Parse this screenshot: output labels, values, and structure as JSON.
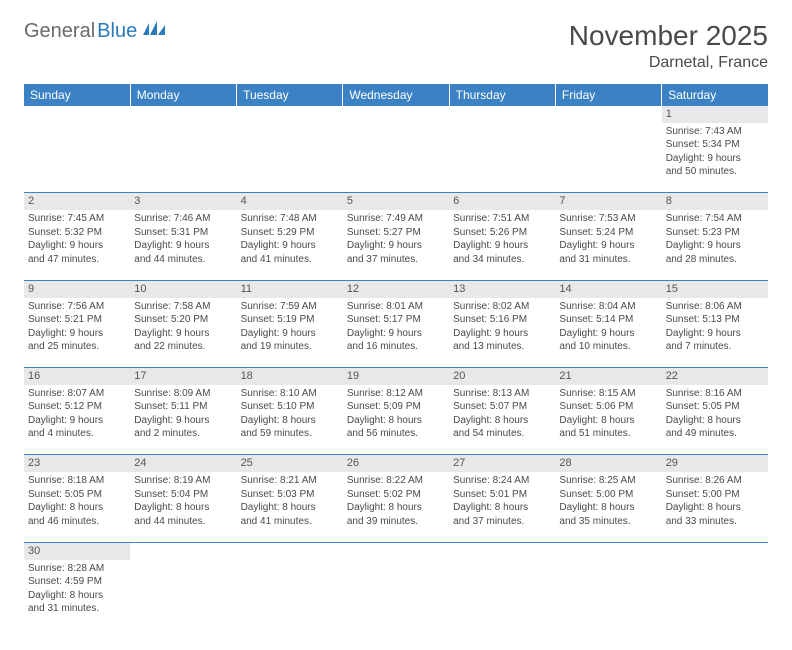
{
  "logo": {
    "textA": "General",
    "textB": "Blue"
  },
  "title": "November 2025",
  "location": "Darnetal, France",
  "header_color": "#3b82c4",
  "daynum_bg": "#e8e8e8",
  "weekdays": [
    "Sunday",
    "Monday",
    "Tuesday",
    "Wednesday",
    "Thursday",
    "Friday",
    "Saturday"
  ],
  "weeks": [
    {
      "nums": [
        "",
        "",
        "",
        "",
        "",
        "",
        "1"
      ],
      "cells": [
        null,
        null,
        null,
        null,
        null,
        null,
        {
          "sunrise": "Sunrise: 7:43 AM",
          "sunset": "Sunset: 5:34 PM",
          "d1": "Daylight: 9 hours",
          "d2": "and 50 minutes."
        }
      ]
    },
    {
      "nums": [
        "2",
        "3",
        "4",
        "5",
        "6",
        "7",
        "8"
      ],
      "cells": [
        {
          "sunrise": "Sunrise: 7:45 AM",
          "sunset": "Sunset: 5:32 PM",
          "d1": "Daylight: 9 hours",
          "d2": "and 47 minutes."
        },
        {
          "sunrise": "Sunrise: 7:46 AM",
          "sunset": "Sunset: 5:31 PM",
          "d1": "Daylight: 9 hours",
          "d2": "and 44 minutes."
        },
        {
          "sunrise": "Sunrise: 7:48 AM",
          "sunset": "Sunset: 5:29 PM",
          "d1": "Daylight: 9 hours",
          "d2": "and 41 minutes."
        },
        {
          "sunrise": "Sunrise: 7:49 AM",
          "sunset": "Sunset: 5:27 PM",
          "d1": "Daylight: 9 hours",
          "d2": "and 37 minutes."
        },
        {
          "sunrise": "Sunrise: 7:51 AM",
          "sunset": "Sunset: 5:26 PM",
          "d1": "Daylight: 9 hours",
          "d2": "and 34 minutes."
        },
        {
          "sunrise": "Sunrise: 7:53 AM",
          "sunset": "Sunset: 5:24 PM",
          "d1": "Daylight: 9 hours",
          "d2": "and 31 minutes."
        },
        {
          "sunrise": "Sunrise: 7:54 AM",
          "sunset": "Sunset: 5:23 PM",
          "d1": "Daylight: 9 hours",
          "d2": "and 28 minutes."
        }
      ]
    },
    {
      "nums": [
        "9",
        "10",
        "11",
        "12",
        "13",
        "14",
        "15"
      ],
      "cells": [
        {
          "sunrise": "Sunrise: 7:56 AM",
          "sunset": "Sunset: 5:21 PM",
          "d1": "Daylight: 9 hours",
          "d2": "and 25 minutes."
        },
        {
          "sunrise": "Sunrise: 7:58 AM",
          "sunset": "Sunset: 5:20 PM",
          "d1": "Daylight: 9 hours",
          "d2": "and 22 minutes."
        },
        {
          "sunrise": "Sunrise: 7:59 AM",
          "sunset": "Sunset: 5:19 PM",
          "d1": "Daylight: 9 hours",
          "d2": "and 19 minutes."
        },
        {
          "sunrise": "Sunrise: 8:01 AM",
          "sunset": "Sunset: 5:17 PM",
          "d1": "Daylight: 9 hours",
          "d2": "and 16 minutes."
        },
        {
          "sunrise": "Sunrise: 8:02 AM",
          "sunset": "Sunset: 5:16 PM",
          "d1": "Daylight: 9 hours",
          "d2": "and 13 minutes."
        },
        {
          "sunrise": "Sunrise: 8:04 AM",
          "sunset": "Sunset: 5:14 PM",
          "d1": "Daylight: 9 hours",
          "d2": "and 10 minutes."
        },
        {
          "sunrise": "Sunrise: 8:06 AM",
          "sunset": "Sunset: 5:13 PM",
          "d1": "Daylight: 9 hours",
          "d2": "and 7 minutes."
        }
      ]
    },
    {
      "nums": [
        "16",
        "17",
        "18",
        "19",
        "20",
        "21",
        "22"
      ],
      "cells": [
        {
          "sunrise": "Sunrise: 8:07 AM",
          "sunset": "Sunset: 5:12 PM",
          "d1": "Daylight: 9 hours",
          "d2": "and 4 minutes."
        },
        {
          "sunrise": "Sunrise: 8:09 AM",
          "sunset": "Sunset: 5:11 PM",
          "d1": "Daylight: 9 hours",
          "d2": "and 2 minutes."
        },
        {
          "sunrise": "Sunrise: 8:10 AM",
          "sunset": "Sunset: 5:10 PM",
          "d1": "Daylight: 8 hours",
          "d2": "and 59 minutes."
        },
        {
          "sunrise": "Sunrise: 8:12 AM",
          "sunset": "Sunset: 5:09 PM",
          "d1": "Daylight: 8 hours",
          "d2": "and 56 minutes."
        },
        {
          "sunrise": "Sunrise: 8:13 AM",
          "sunset": "Sunset: 5:07 PM",
          "d1": "Daylight: 8 hours",
          "d2": "and 54 minutes."
        },
        {
          "sunrise": "Sunrise: 8:15 AM",
          "sunset": "Sunset: 5:06 PM",
          "d1": "Daylight: 8 hours",
          "d2": "and 51 minutes."
        },
        {
          "sunrise": "Sunrise: 8:16 AM",
          "sunset": "Sunset: 5:05 PM",
          "d1": "Daylight: 8 hours",
          "d2": "and 49 minutes."
        }
      ]
    },
    {
      "nums": [
        "23",
        "24",
        "25",
        "26",
        "27",
        "28",
        "29"
      ],
      "cells": [
        {
          "sunrise": "Sunrise: 8:18 AM",
          "sunset": "Sunset: 5:05 PM",
          "d1": "Daylight: 8 hours",
          "d2": "and 46 minutes."
        },
        {
          "sunrise": "Sunrise: 8:19 AM",
          "sunset": "Sunset: 5:04 PM",
          "d1": "Daylight: 8 hours",
          "d2": "and 44 minutes."
        },
        {
          "sunrise": "Sunrise: 8:21 AM",
          "sunset": "Sunset: 5:03 PM",
          "d1": "Daylight: 8 hours",
          "d2": "and 41 minutes."
        },
        {
          "sunrise": "Sunrise: 8:22 AM",
          "sunset": "Sunset: 5:02 PM",
          "d1": "Daylight: 8 hours",
          "d2": "and 39 minutes."
        },
        {
          "sunrise": "Sunrise: 8:24 AM",
          "sunset": "Sunset: 5:01 PM",
          "d1": "Daylight: 8 hours",
          "d2": "and 37 minutes."
        },
        {
          "sunrise": "Sunrise: 8:25 AM",
          "sunset": "Sunset: 5:00 PM",
          "d1": "Daylight: 8 hours",
          "d2": "and 35 minutes."
        },
        {
          "sunrise": "Sunrise: 8:26 AM",
          "sunset": "Sunset: 5:00 PM",
          "d1": "Daylight: 8 hours",
          "d2": "and 33 minutes."
        }
      ]
    },
    {
      "nums": [
        "30",
        "",
        "",
        "",
        "",
        "",
        ""
      ],
      "cells": [
        {
          "sunrise": "Sunrise: 8:28 AM",
          "sunset": "Sunset: 4:59 PM",
          "d1": "Daylight: 8 hours",
          "d2": "and 31 minutes."
        },
        null,
        null,
        null,
        null,
        null,
        null
      ]
    }
  ]
}
